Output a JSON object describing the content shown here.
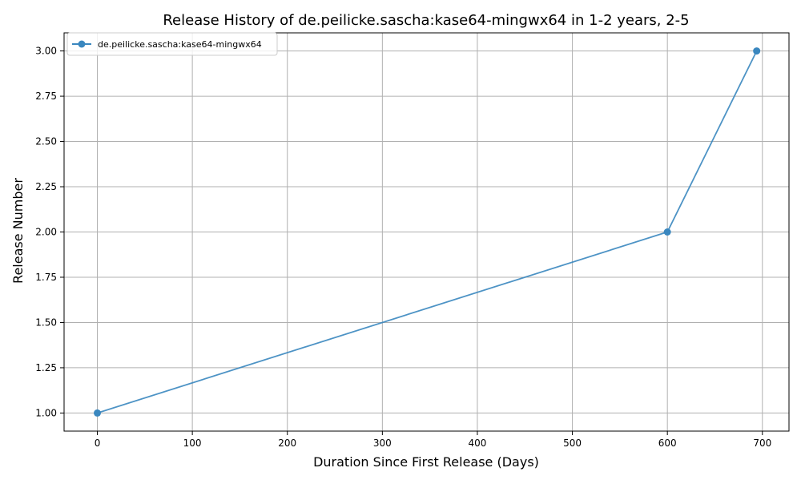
{
  "chart_data": {
    "type": "line",
    "title": "Release History of de.peilicke.sascha:kase64-mingwx64 in 1-2 years, 2-5",
    "xlabel": "Duration Since First Release (Days)",
    "ylabel": "Release Number",
    "xlim": [
      -35,
      728
    ],
    "ylim": [
      0.9,
      3.1
    ],
    "x_ticks": [
      0,
      100,
      200,
      300,
      400,
      500,
      600,
      700
    ],
    "x_tick_labels": [
      "0",
      "100",
      "200",
      "300",
      "400",
      "500",
      "600",
      "700"
    ],
    "y_ticks": [
      1.0,
      1.25,
      1.5,
      1.75,
      2.0,
      2.25,
      2.5,
      2.75,
      3.0
    ],
    "y_tick_labels": [
      "1.00",
      "1.25",
      "1.50",
      "1.75",
      "2.00",
      "2.25",
      "2.50",
      "2.75",
      "3.00"
    ],
    "grid": true,
    "legend_position": "top-left",
    "series": [
      {
        "name": "de.peilicke.sascha:kase64-mingwx64",
        "color": "#3a87bf",
        "x": [
          0,
          600,
          694
        ],
        "y": [
          1,
          2,
          3
        ]
      }
    ]
  }
}
